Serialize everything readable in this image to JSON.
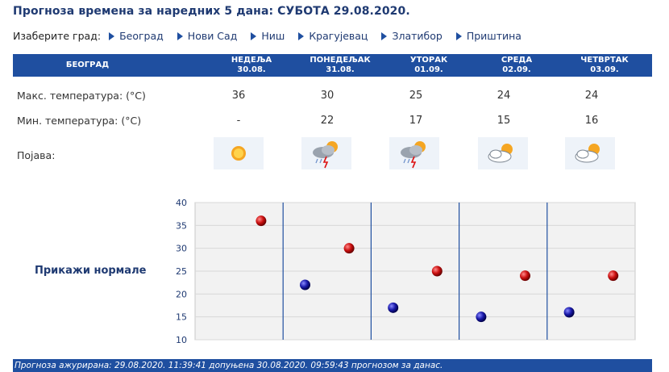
{
  "title": "Прогноза времена за наредних 5 дана: СУБОТА  29.08.2020.",
  "city_select": {
    "label": "Изаберите град:",
    "cities": [
      "Београд",
      "Нови Сад",
      "Ниш",
      "Крагујевац",
      "Златибор",
      "Приштина"
    ]
  },
  "table": {
    "city": "БЕОГРАД",
    "days": [
      {
        "name": "НЕДЕЉА",
        "date": "30.08.",
        "max": "36",
        "min": "-",
        "icon": "sunny-icon"
      },
      {
        "name": "ПОНЕДЕЉАК",
        "date": "31.08.",
        "max": "30",
        "min": "22",
        "icon": "thunderstorm-icon"
      },
      {
        "name": "УТОРАК",
        "date": "01.09.",
        "max": "25",
        "min": "17",
        "icon": "thunderstorm-icon"
      },
      {
        "name": "СРЕДА",
        "date": "02.09.",
        "max": "24",
        "min": "15",
        "icon": "partly-cloudy-icon"
      },
      {
        "name": "ЧЕТВРТАК",
        "date": "03.09.",
        "max": "24",
        "min": "16",
        "icon": "partly-cloudy-icon"
      }
    ],
    "row_labels": {
      "max": "Макс. температура: (°C)",
      "min": "Мин. температура: (°C)",
      "phenomenon": "Појава:"
    }
  },
  "chart_link": "Прикажи нормале",
  "chart_data": {
    "type": "scatter",
    "yticks": [
      "40",
      "35",
      "30",
      "25",
      "20",
      "15",
      "10"
    ],
    "ylim": [
      10,
      40
    ],
    "grid": true,
    "series": [
      {
        "values": [
          36,
          30,
          25,
          24,
          24
        ],
        "color": "#cc1111"
      },
      {
        "values": [
          null,
          22,
          17,
          15,
          16
        ],
        "color": "#1a1aaa"
      }
    ]
  },
  "footer": "Прогноза ажурирана:  29.08.2020. 11:39:41 допуњена 30.08.2020. 09:59:43 прогнозом за данас."
}
